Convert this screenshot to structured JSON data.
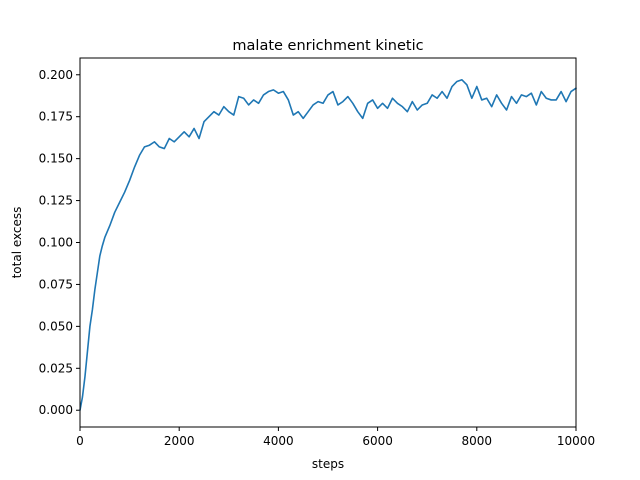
{
  "chart_data": {
    "type": "line",
    "title": "malate enrichment kinetic",
    "xlabel": "steps",
    "ylabel": "total excess",
    "xlim": [
      0,
      10000
    ],
    "ylim": [
      -0.01,
      0.21
    ],
    "xticks": [
      0,
      2000,
      4000,
      6000,
      8000,
      10000
    ],
    "xtick_labels": [
      "0",
      "2000",
      "4000",
      "6000",
      "8000",
      "10000"
    ],
    "yticks": [
      0.0,
      0.025,
      0.05,
      0.075,
      0.1,
      0.125,
      0.15,
      0.175,
      0.2
    ],
    "ytick_labels": [
      "0.000",
      "0.025",
      "0.050",
      "0.075",
      "0.100",
      "0.125",
      "0.150",
      "0.175",
      "0.200"
    ],
    "grid": false,
    "legend": "none",
    "series": [
      {
        "color": "#1f77b4",
        "x": [
          0,
          50,
          100,
          150,
          200,
          250,
          300,
          350,
          400,
          450,
          500,
          600,
          700,
          800,
          900,
          1000,
          1100,
          1200,
          1300,
          1400,
          1500,
          1600,
          1700,
          1800,
          1900,
          2000,
          2100,
          2200,
          2300,
          2400,
          2500,
          2600,
          2700,
          2800,
          2900,
          3000,
          3100,
          3200,
          3300,
          3400,
          3500,
          3600,
          3700,
          3800,
          3900,
          4000,
          4100,
          4200,
          4300,
          4400,
          4500,
          4600,
          4700,
          4800,
          4900,
          5000,
          5100,
          5200,
          5300,
          5400,
          5500,
          5600,
          5700,
          5800,
          5900,
          6000,
          6100,
          6200,
          6300,
          6400,
          6500,
          6600,
          6700,
          6800,
          6900,
          7000,
          7100,
          7200,
          7300,
          7400,
          7500,
          7600,
          7700,
          7800,
          7900,
          8000,
          8100,
          8200,
          8300,
          8400,
          8500,
          8600,
          8700,
          8800,
          8900,
          9000,
          9100,
          9200,
          9300,
          9400,
          9500,
          9600,
          9700,
          9800,
          9900,
          10000
        ],
        "y": [
          0.0,
          0.008,
          0.02,
          0.035,
          0.05,
          0.06,
          0.072,
          0.082,
          0.092,
          0.098,
          0.103,
          0.11,
          0.118,
          0.124,
          0.13,
          0.137,
          0.145,
          0.152,
          0.157,
          0.158,
          0.16,
          0.157,
          0.156,
          0.162,
          0.16,
          0.163,
          0.166,
          0.163,
          0.168,
          0.162,
          0.172,
          0.175,
          0.178,
          0.176,
          0.181,
          0.178,
          0.176,
          0.187,
          0.186,
          0.182,
          0.185,
          0.183,
          0.188,
          0.19,
          0.191,
          0.189,
          0.19,
          0.185,
          0.176,
          0.178,
          0.174,
          0.178,
          0.182,
          0.184,
          0.183,
          0.188,
          0.19,
          0.182,
          0.184,
          0.187,
          0.183,
          0.178,
          0.174,
          0.183,
          0.185,
          0.18,
          0.183,
          0.18,
          0.186,
          0.183,
          0.181,
          0.178,
          0.184,
          0.179,
          0.182,
          0.183,
          0.188,
          0.186,
          0.19,
          0.186,
          0.193,
          0.196,
          0.197,
          0.194,
          0.186,
          0.193,
          0.185,
          0.186,
          0.181,
          0.188,
          0.183,
          0.179,
          0.187,
          0.183,
          0.188,
          0.187,
          0.189,
          0.182,
          0.19,
          0.186,
          0.185,
          0.185,
          0.19,
          0.184,
          0.19,
          0.192
        ]
      }
    ]
  }
}
